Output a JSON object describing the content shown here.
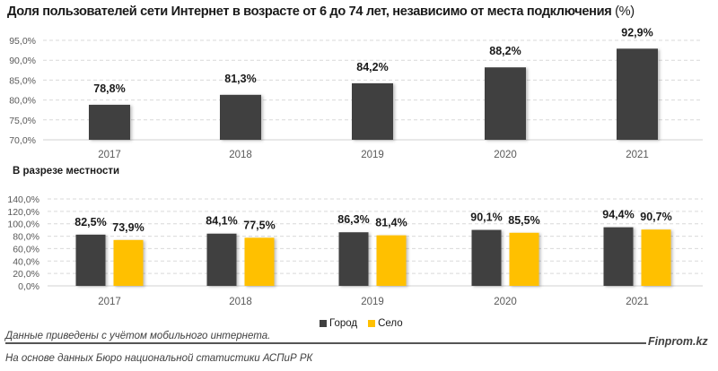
{
  "title": "Доля пользователей сети Интернет в возрасте от 6 до 74 лет, независимо от места подключения",
  "title_unit": "(%)",
  "subtitle": "В разрезе местности",
  "legend": [
    {
      "name": "Город",
      "color": "#404040"
    },
    {
      "name": "Село",
      "color": "#FFC000"
    }
  ],
  "note": "Данные приведены с учётом мобильного интернета.",
  "source": "На основе данных Бюро национальной статистики АСПиР РК",
  "brand": "Finprom.kz",
  "chart_data": [
    {
      "type": "bar",
      "title": "Доля пользователей сети Интернет в возрасте от 6 до 74 лет, независимо от места подключения (%)",
      "xlabel": "",
      "ylabel": "",
      "categories": [
        "2017",
        "2018",
        "2019",
        "2020",
        "2021"
      ],
      "values": [
        78.8,
        81.3,
        84.2,
        88.2,
        92.9
      ],
      "data_labels": [
        "78,8%",
        "81,3%",
        "84,2%",
        "88,2%",
        "92,9%"
      ],
      "ylim": [
        70,
        95
      ],
      "yticks": [
        70,
        75,
        80,
        85,
        90,
        95
      ],
      "ytick_labels": [
        "70,0%",
        "75,0%",
        "80,0%",
        "85,0%",
        "90,0%",
        "95,0%"
      ],
      "grid": true,
      "color": "#404040"
    },
    {
      "type": "bar",
      "title": "В разрезе местности",
      "xlabel": "",
      "ylabel": "",
      "categories": [
        "2017",
        "2018",
        "2019",
        "2020",
        "2021"
      ],
      "series": [
        {
          "name": "Город",
          "color": "#404040",
          "values": [
            82.5,
            84.1,
            86.3,
            90.1,
            94.4
          ],
          "data_labels": [
            "82,5%",
            "84,1%",
            "86,3%",
            "90,1%",
            "94,4%"
          ]
        },
        {
          "name": "Село",
          "color": "#FFC000",
          "values": [
            73.9,
            77.5,
            81.4,
            85.5,
            90.7
          ],
          "data_labels": [
            "73,9%",
            "77,5%",
            "81,4%",
            "85,5%",
            "90,7%"
          ]
        }
      ],
      "ylim": [
        0,
        140
      ],
      "yticks": [
        0,
        20,
        40,
        60,
        80,
        100,
        120,
        140
      ],
      "ytick_labels": [
        "0,0%",
        "20,0%",
        "40,0%",
        "60,0%",
        "80,0%",
        "100,0%",
        "120,0%",
        "140,0%"
      ],
      "grid": true,
      "legend": "bottom-center"
    }
  ]
}
